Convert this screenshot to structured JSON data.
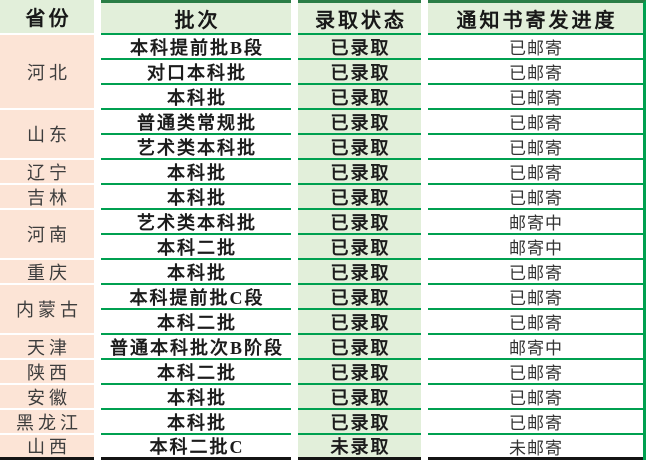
{
  "table": {
    "headers": [
      {
        "label": "省份"
      },
      {
        "label": "批次"
      },
      {
        "label": "录取状态"
      },
      {
        "label": "通知书寄发进度"
      }
    ],
    "provinces": [
      {
        "name": "河北",
        "rows": 3
      },
      {
        "name": "山东",
        "rows": 2
      },
      {
        "name": "辽宁",
        "rows": 1
      },
      {
        "name": "吉林",
        "rows": 1
      },
      {
        "name": "河南",
        "rows": 2
      },
      {
        "name": "重庆",
        "rows": 1
      },
      {
        "name": "内蒙古",
        "rows": 2
      },
      {
        "name": "天津",
        "rows": 1
      },
      {
        "name": "陕西",
        "rows": 1
      },
      {
        "name": "安徽",
        "rows": 1
      },
      {
        "name": "黑龙江",
        "rows": 1
      },
      {
        "name": "山西",
        "rows": 1
      }
    ],
    "rows": [
      {
        "batch": "本科提前批B段",
        "status": "已录取",
        "progress": "已邮寄"
      },
      {
        "batch": "对口本科批",
        "status": "已录取",
        "progress": "已邮寄"
      },
      {
        "batch": "本科批",
        "status": "已录取",
        "progress": "已邮寄"
      },
      {
        "batch": "普通类常规批",
        "status": "已录取",
        "progress": "已邮寄"
      },
      {
        "batch": "艺术类本科批",
        "status": "已录取",
        "progress": "已邮寄"
      },
      {
        "batch": "本科批",
        "status": "已录取",
        "progress": "已邮寄"
      },
      {
        "batch": "本科批",
        "status": "已录取",
        "progress": "已邮寄"
      },
      {
        "batch": "艺术类本科批",
        "status": "已录取",
        "progress": "邮寄中"
      },
      {
        "batch": "本科二批",
        "status": "已录取",
        "progress": "邮寄中"
      },
      {
        "batch": "本科批",
        "status": "已录取",
        "progress": "已邮寄"
      },
      {
        "batch": "本科提前批C段",
        "status": "已录取",
        "progress": "已邮寄"
      },
      {
        "batch": "本科二批",
        "status": "已录取",
        "progress": "已邮寄"
      },
      {
        "batch": "普通本科批次B阶段",
        "status": "已录取",
        "progress": "邮寄中"
      },
      {
        "batch": "本科二批",
        "status": "已录取",
        "progress": "已邮寄"
      },
      {
        "batch": "本科批",
        "status": "已录取",
        "progress": "已邮寄"
      },
      {
        "batch": "本科批",
        "status": "已录取",
        "progress": "已邮寄"
      },
      {
        "batch": "本科二批C",
        "status": "未录取",
        "progress": "未邮寄"
      }
    ],
    "colors": {
      "header_bg": "#e2efda",
      "status_bg": "#e2efda",
      "province_bg": "#fce4d6",
      "row_line_green": "#00a050",
      "header_top_green": "#2a7d46",
      "bottom_border_black": "#141414"
    }
  }
}
